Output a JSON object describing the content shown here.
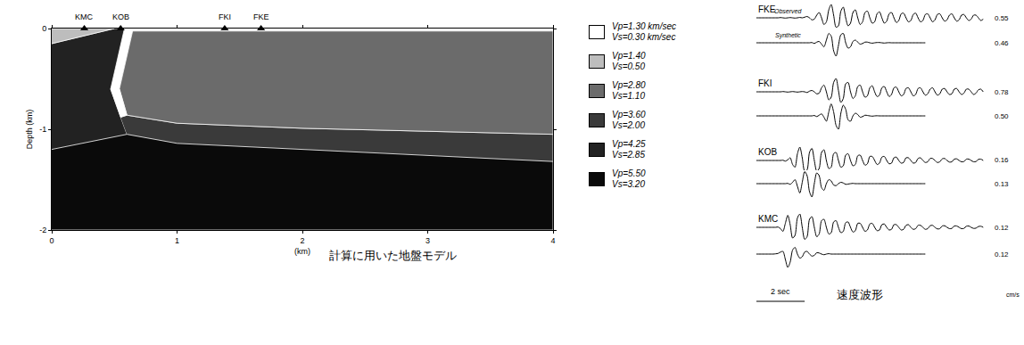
{
  "chart_data": [
    {
      "type": "area",
      "title": "計算に用いた地盤モデル",
      "x_label": "(km)",
      "y_label": "Depth (km)",
      "xlim": [
        0,
        4
      ],
      "xticks": [
        0,
        1,
        2,
        3,
        4
      ],
      "ylim": [
        -2,
        0
      ],
      "yticks": [
        -2,
        -1,
        0
      ],
      "stations": [
        {
          "name": "KMC",
          "x": 0.26
        },
        {
          "name": "KOB",
          "x": 0.55
        },
        {
          "name": "FKI",
          "x": 1.38
        },
        {
          "name": "FKE",
          "x": 1.67
        }
      ],
      "series": [
        {
          "name": "Vp=1.30 km/sec\nVs=0.30 km/sec",
          "color": "#ffffff",
          "x": [
            0.58,
            0.65,
            0.54,
            0.6,
            0.55,
            0.47,
            null,
            0.65,
            4,
            4,
            0.64
          ],
          "y": [
            0,
            0,
            -0.6,
            -0.86,
            -0.88,
            -0.6,
            null,
            0,
            0,
            -0.025,
            -0.025
          ]
        },
        {
          "name": "Vp=1.40\nVs=0.50",
          "color": "#bdbdbd",
          "x": [
            0,
            0.5,
            0
          ],
          "y": [
            0,
            0,
            -0.15
          ]
        },
        {
          "name": "Vp=2.80\nVs=1.10",
          "color": "#6b6b6b",
          "x": [
            0.65,
            4,
            4,
            3,
            2,
            1,
            0.6,
            0.54
          ],
          "y": [
            0,
            0,
            -1.05,
            -1.02,
            -0.99,
            -0.94,
            -0.86,
            -0.6
          ]
        },
        {
          "name": "Vp=3.60\nVs=2.00",
          "color": "#3a3a3a",
          "x": [
            0.55,
            0.6,
            1,
            2,
            3,
            4,
            4,
            3,
            2,
            1,
            0.6
          ],
          "y": [
            -0.88,
            -0.86,
            -0.94,
            -0.99,
            -1.02,
            -1.05,
            -1.32,
            -1.26,
            -1.2,
            -1.14,
            -1.05
          ]
        },
        {
          "name": "Vp=4.25\nVs=2.85",
          "color": "#222222",
          "x": [
            0,
            0.5,
            0.58,
            0.47,
            0.55,
            0.6,
            0
          ],
          "y": [
            -0.15,
            0,
            0,
            -0.6,
            -0.88,
            -1.05,
            -1.2
          ]
        },
        {
          "name": "Vp=5.50\nVs=3.20",
          "color": "#0a0a0a",
          "x": [
            0,
            4,
            4,
            0
          ],
          "y": [
            0,
            0,
            -2,
            -2
          ]
        }
      ]
    },
    {
      "type": "line",
      "title": "速度波形",
      "tick_labels": false,
      "unit": "cm/s",
      "scale_bar": {
        "length": 2,
        "label": "2 sec"
      },
      "trace_labels": {
        "observed": "Observed",
        "synthetic": "Synthetic"
      },
      "xlim": [
        0,
        9.5
      ],
      "ylim": [
        -1,
        1
      ],
      "x": [
        0,
        0.1,
        0.2,
        0.3,
        0.4,
        0.5,
        0.6,
        0.7,
        0.8,
        0.9,
        1,
        1.1,
        1.2,
        1.3,
        1.4,
        1.5,
        1.6,
        1.7,
        1.8,
        1.9,
        2,
        2.1,
        2.2,
        2.3,
        2.4,
        2.5,
        2.6,
        2.7,
        2.8,
        2.9,
        3,
        3.1,
        3.2,
        3.3,
        3.4,
        3.5,
        3.6,
        3.7,
        3.8,
        3.9,
        4,
        4.1,
        4.2,
        4.3,
        4.4,
        4.5,
        4.6,
        4.7,
        4.8,
        4.9,
        5,
        5.1,
        5.2,
        5.3,
        5.4,
        5.5,
        5.6,
        5.7,
        5.8,
        5.9,
        6,
        6.1,
        6.2,
        6.3,
        6.4,
        6.5,
        6.6,
        6.7,
        6.8,
        6.9,
        7,
        7.1,
        7.2,
        7.3,
        7.4,
        7.5,
        7.6,
        7.7,
        7.8,
        7.9,
        8,
        8.1,
        8.2,
        8.3,
        8.4,
        8.5,
        8.6,
        8.7,
        8.8,
        8.9,
        9,
        9.1,
        9.2,
        9.3,
        9.4
      ],
      "stations": [
        {
          "name": "FKE",
          "observed": {
            "peak": 0.55,
            "values": [
              0,
              0,
              0,
              0,
              0,
              0,
              0,
              0,
              0,
              0,
              0.02,
              0,
              -0.02,
              0,
              0.02,
              0,
              -0.02,
              0,
              0.03,
              0,
              0.05,
              0.1,
              0,
              -0.15,
              -0.1,
              0.2,
              0.4,
              0,
              -0.5,
              -0.3,
              0.6,
              1.0,
              0.2,
              -0.7,
              -0.6,
              0.5,
              0.8,
              0,
              -0.6,
              -0.4,
              0.4,
              0.6,
              0,
              -0.5,
              -0.3,
              0.4,
              0.5,
              0,
              -0.4,
              -0.3,
              0.3,
              0.45,
              0,
              -0.4,
              -0.25,
              0.3,
              0.4,
              0,
              -0.35,
              -0.2,
              0.3,
              0.35,
              0,
              -0.3,
              -0.2,
              0.25,
              0.35,
              0,
              -0.3,
              -0.2,
              0.25,
              0.3,
              0,
              -0.3,
              -0.15,
              0.25,
              0.3,
              0,
              -0.25,
              -0.15,
              0.2,
              0.3,
              0,
              -0.25,
              -0.15,
              0.2,
              0.25,
              0,
              -0.2,
              -0.1,
              0.2,
              0.2,
              0,
              -0.2,
              -0.1
            ]
          },
          "synthetic": {
            "peak": 0.46,
            "values": [
              0,
              0,
              0,
              0,
              0,
              0,
              0,
              0,
              0,
              0,
              0,
              0,
              0,
              0,
              0,
              0,
              0,
              0,
              0,
              0,
              0,
              0,
              0,
              0.02,
              -0.05,
              0.05,
              0.1,
              -0.1,
              -0.3,
              0.2,
              0.7,
              0.5,
              -0.6,
              -1.0,
              -0.2,
              0.6,
              0.7,
              0,
              -0.4,
              -0.3,
              0.1,
              0.2,
              0.05,
              -0.1,
              -0.05,
              0.05,
              0.05,
              0,
              -0.03,
              0,
              0.02,
              0.02,
              0,
              -0.02,
              0,
              0.01,
              0,
              0,
              0,
              0,
              0,
              0,
              0,
              0,
              0,
              0,
              0,
              0,
              0,
              0,
              0,
              null,
              null,
              null,
              null,
              null,
              null,
              null,
              null,
              null,
              null,
              null,
              null,
              null,
              null,
              null,
              null,
              null,
              null,
              null,
              null,
              null,
              null,
              null,
              null
            ]
          }
        },
        {
          "name": "FKI",
          "observed": {
            "peak": 0.78,
            "values": [
              0,
              0,
              0,
              0,
              0,
              0,
              0,
              0,
              0,
              0,
              0,
              0.02,
              0,
              -0.02,
              0,
              0.02,
              0,
              -0.02,
              0,
              0.02,
              0,
              -0.05,
              0.05,
              0.1,
              0,
              -0.15,
              -0.1,
              0.3,
              0.5,
              0,
              -0.6,
              -0.4,
              0.7,
              1.0,
              0.1,
              -0.8,
              -0.5,
              0.6,
              0.7,
              0,
              -0.5,
              -0.3,
              0.4,
              0.5,
              0,
              -0.4,
              -0.3,
              0.3,
              0.45,
              0,
              -0.35,
              -0.25,
              0.3,
              0.4,
              0,
              -0.35,
              -0.2,
              0.3,
              0.35,
              0,
              -0.3,
              -0.2,
              0.25,
              0.3,
              0,
              -0.3,
              -0.2,
              0.25,
              0.3,
              0,
              -0.25,
              -0.15,
              0.2,
              0.3,
              0,
              -0.25,
              -0.15,
              0.2,
              0.25,
              0,
              -0.2,
              -0.15,
              0.2,
              0.25,
              0,
              -0.2,
              -0.1,
              0.2,
              0.2,
              0,
              -0.2,
              -0.1,
              0.15,
              0.2,
              0
            ]
          },
          "synthetic": {
            "peak": 0.5,
            "peak_label": "0.50",
            "values": [
              0,
              0,
              0,
              0,
              0,
              0,
              0,
              0,
              0,
              0,
              0,
              0,
              0,
              0,
              0,
              0,
              0,
              0,
              0,
              0,
              0,
              0,
              0,
              0,
              0.03,
              -0.05,
              0.05,
              0.15,
              -0.1,
              -0.4,
              0.3,
              0.9,
              0.3,
              -0.7,
              -1.0,
              0.2,
              0.8,
              0.5,
              -0.3,
              -0.4,
              0,
              0.2,
              0.1,
              -0.1,
              -0.05,
              0.05,
              0.03,
              0,
              -0.02,
              0,
              0.01,
              0,
              0,
              0,
              0,
              0,
              0,
              0,
              0,
              0,
              0,
              0,
              0,
              0,
              0,
              0,
              0,
              0,
              0,
              0,
              0,
              null,
              null,
              null,
              null,
              null,
              null,
              null,
              null,
              null,
              null,
              null,
              null,
              null,
              null,
              null,
              null,
              null,
              null,
              null,
              null,
              null,
              null,
              null,
              null
            ]
          }
        },
        {
          "name": "KOB",
          "observed": {
            "peak": 0.16,
            "values": [
              0,
              0,
              0,
              0,
              0,
              0,
              0,
              0,
              0,
              0,
              0,
              0.02,
              -0.05,
              0.05,
              0.2,
              -0.3,
              -0.5,
              0.5,
              1.0,
              0.2,
              -0.8,
              -0.7,
              0.6,
              0.9,
              0,
              -0.8,
              -0.6,
              0.6,
              0.8,
              0,
              -0.6,
              -0.5,
              0.5,
              0.6,
              0,
              -0.5,
              -0.4,
              0.4,
              0.5,
              0,
              -0.4,
              -0.3,
              0.35,
              0.4,
              0,
              -0.35,
              -0.25,
              0.3,
              0.3,
              0,
              -0.3,
              -0.2,
              0.25,
              0.3,
              0,
              -0.25,
              -0.2,
              0.2,
              0.25,
              0,
              -0.2,
              -0.15,
              0.2,
              0.2,
              0,
              -0.2,
              -0.15,
              0.15,
              0.2,
              0,
              -0.15,
              -0.1,
              0.15,
              0.15,
              0,
              -0.15,
              -0.1,
              0.12,
              0.15,
              0,
              -0.12,
              -0.1,
              0.1,
              0.12,
              0,
              -0.1,
              -0.08,
              0.1,
              0.1,
              0,
              -0.1,
              -0.08,
              0.08,
              0.1,
              0
            ]
          },
          "synthetic": {
            "peak": 0.13,
            "values": [
              0,
              0,
              0,
              0,
              0,
              0,
              0,
              0,
              0,
              0,
              0,
              0,
              0,
              0.02,
              -0.05,
              0.1,
              0.3,
              -0.2,
              -0.7,
              0.1,
              0.9,
              0.6,
              -0.6,
              -1.0,
              0,
              0.8,
              0.6,
              -0.3,
              -0.5,
              0,
              0.3,
              0.2,
              -0.1,
              -0.15,
              0,
              0.1,
              0.05,
              -0.05,
              -0.03,
              0,
              0.02,
              0,
              0,
              0,
              0,
              0,
              0,
              0,
              0,
              0,
              0,
              0,
              0,
              0,
              0,
              0,
              0,
              0,
              0,
              0,
              0,
              0,
              0,
              0,
              0,
              0,
              0,
              0,
              0,
              0,
              0,
              null,
              null,
              null,
              null,
              null,
              null,
              null,
              null,
              null,
              null,
              null,
              null,
              null,
              null,
              null,
              null,
              null,
              null,
              null,
              null,
              null,
              null,
              null,
              null
            ]
          }
        },
        {
          "name": "KMC",
          "observed": {
            "peak": 0.12,
            "values": [
              0,
              0,
              0,
              0,
              0,
              0,
              0,
              0,
              0,
              0.02,
              -0.1,
              -0.3,
              0.3,
              0.9,
              0.2,
              -0.8,
              -0.6,
              0.7,
              1.0,
              0,
              -0.9,
              -0.7,
              0.6,
              0.8,
              0,
              -0.7,
              -0.5,
              0.5,
              0.6,
              0,
              -0.5,
              -0.4,
              0.4,
              0.5,
              0,
              -0.4,
              -0.3,
              0.35,
              0.4,
              0,
              -0.35,
              -0.25,
              0.3,
              0.3,
              0,
              -0.3,
              -0.2,
              0.25,
              0.3,
              0,
              -0.25,
              -0.2,
              0.2,
              0.25,
              0,
              -0.2,
              -0.15,
              0.2,
              0.2,
              0,
              -0.2,
              -0.15,
              0.15,
              0.2,
              0,
              -0.15,
              -0.1,
              0.15,
              0.15,
              0,
              -0.15,
              -0.1,
              0.12,
              0.15,
              0,
              -0.12,
              -0.1,
              0.1,
              0.12,
              0,
              -0.1,
              -0.08,
              0.1,
              0.1,
              0,
              -0.1,
              -0.08,
              0.08,
              0.1,
              0,
              -0.08,
              -0.06,
              0.06,
              0.08,
              0
            ]
          },
          "synthetic": {
            "peak": 0.12,
            "values": [
              0,
              0,
              0,
              0,
              0,
              0,
              0,
              0,
              0.02,
              0.05,
              0.15,
              0.2,
              -0.4,
              -1.0,
              -0.6,
              0.3,
              0.5,
              0,
              -0.3,
              -0.2,
              0.15,
              0.2,
              0,
              -0.15,
              -0.1,
              0.1,
              0.08,
              0,
              -0.05,
              0,
              0.03,
              0,
              0,
              0,
              0,
              0,
              0,
              0,
              0,
              0,
              0,
              0,
              0,
              0,
              0,
              0,
              0,
              0,
              0,
              0,
              0,
              0,
              0,
              0,
              0,
              0,
              0,
              0,
              0,
              0,
              0,
              0,
              0,
              0,
              0,
              0,
              0,
              0,
              0,
              0,
              0,
              null,
              null,
              null,
              null,
              null,
              null,
              null,
              null,
              null,
              null,
              null,
              null,
              null,
              null,
              null,
              null,
              null,
              null,
              null,
              null,
              null,
              null,
              null,
              null
            ]
          }
        }
      ]
    }
  ]
}
